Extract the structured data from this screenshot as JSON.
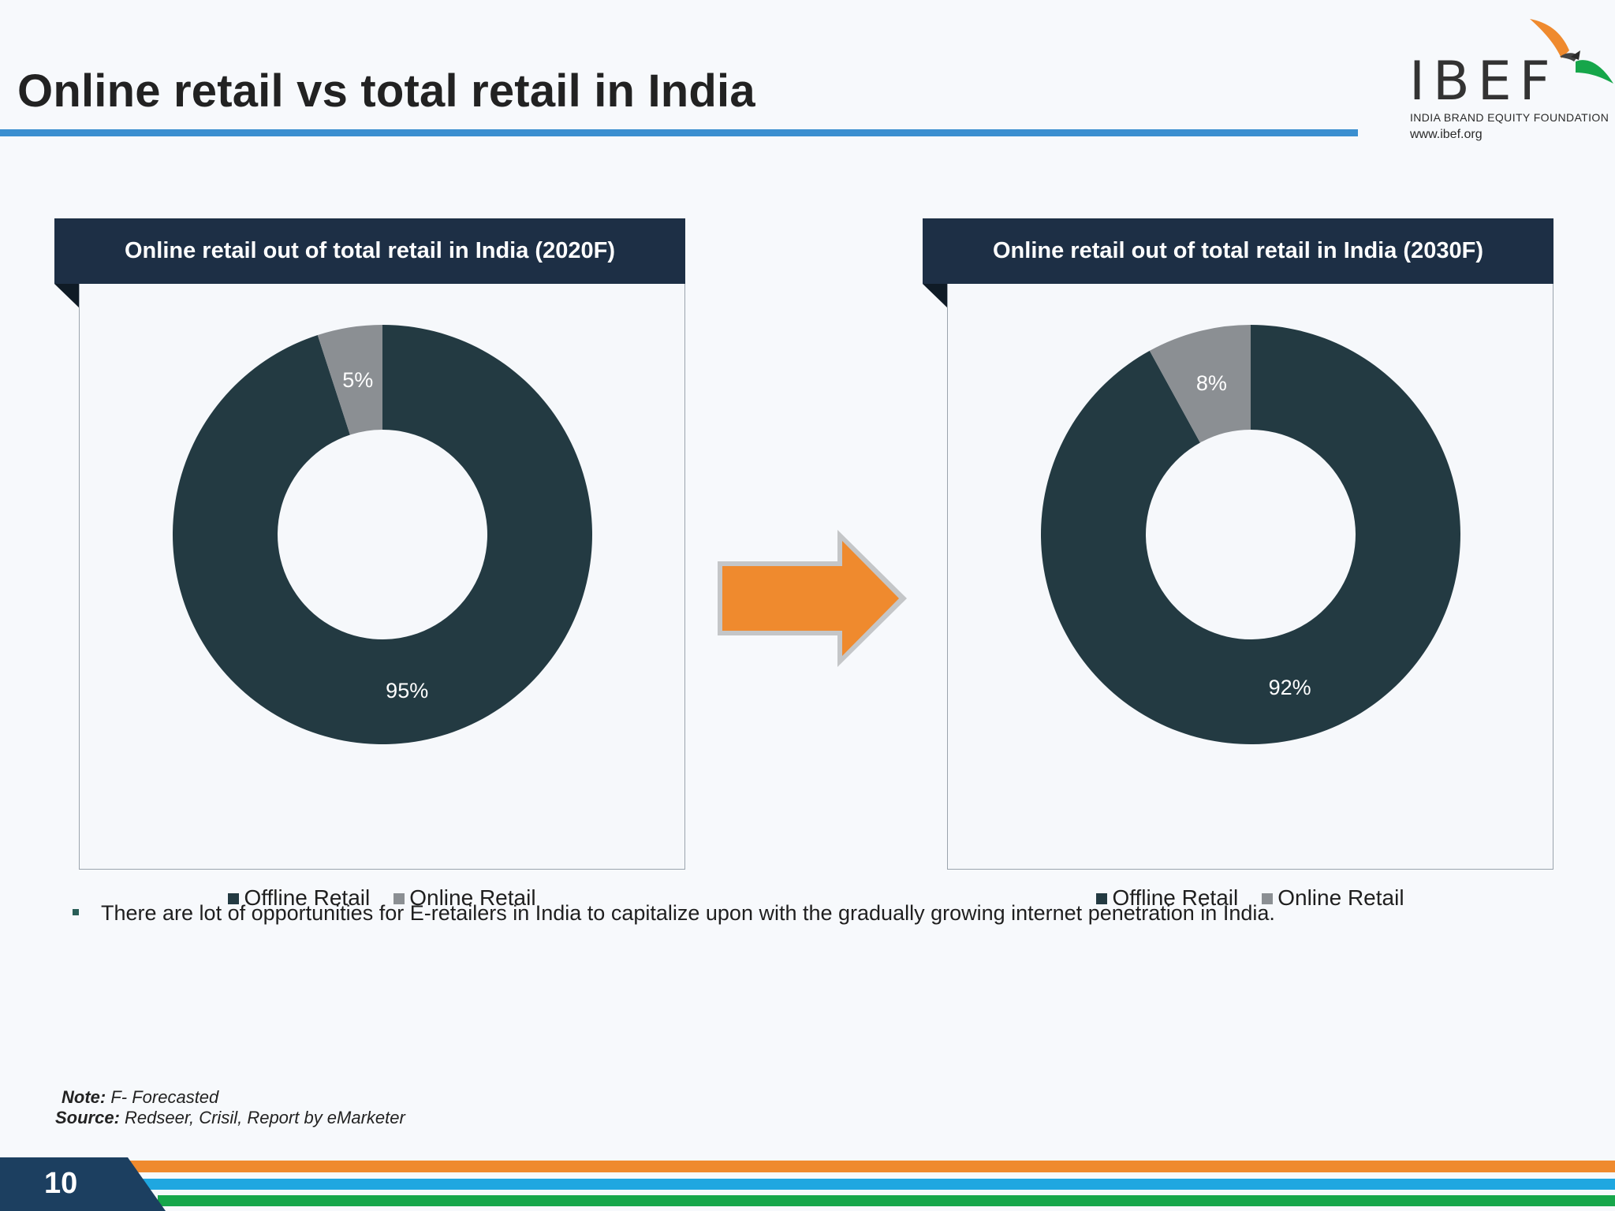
{
  "title": "Online retail vs total retail in India",
  "logo": {
    "wordmark": "IBEF",
    "tagline": "INDIA BRAND EQUITY FOUNDATION",
    "url": "www.ibef.org"
  },
  "chart_data": [
    {
      "type": "pie",
      "title": "Online retail out of total retail in India (2020F)",
      "categories": [
        "Offline Retail",
        "Online Retail"
      ],
      "values": [
        95,
        5
      ],
      "labels": [
        "95%",
        "5%"
      ],
      "colors": [
        "#233a42",
        "#8b8f93"
      ],
      "legend": "bottom",
      "donut": true
    },
    {
      "type": "pie",
      "title": "Online retail out of total retail in India (2030F)",
      "categories": [
        "Offline Retail",
        "Online Retail"
      ],
      "values": [
        92,
        8
      ],
      "labels": [
        "92%",
        "8%"
      ],
      "colors": [
        "#233a42",
        "#8b8f93"
      ],
      "legend": "bottom",
      "donut": true
    }
  ],
  "bullet": "There are lot of opportunities for E-retailers in India to capitalize upon with the gradually growing internet penetration in India.",
  "note": {
    "label": "Note:",
    "text": "F- Forecasted"
  },
  "source": {
    "label": "Source:",
    "text": "Redseer, Crisil, Report by eMarketer"
  },
  "page_number": "10",
  "colors": {
    "accent_blue": "#3b8fd0",
    "header_navy": "#1d2f45",
    "arrow_orange": "#ef8a2e",
    "footer_green": "#16a64a"
  }
}
